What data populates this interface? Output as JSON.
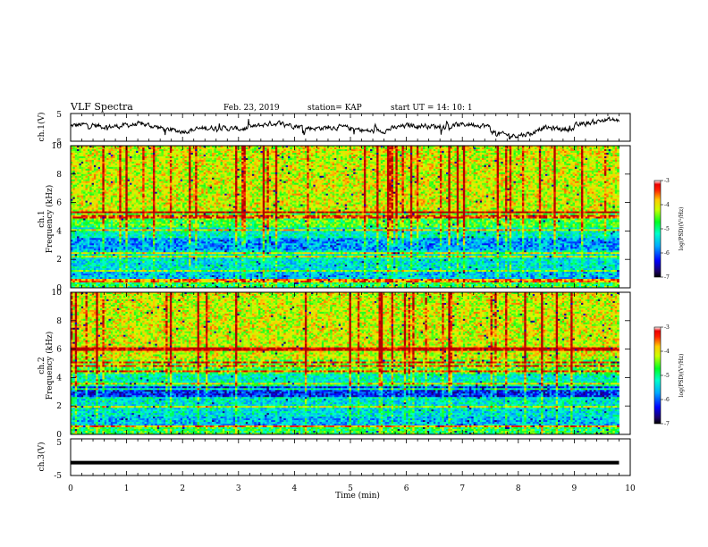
{
  "header": {
    "title": "VLF Spectra",
    "date": "Feb. 23, 2019",
    "station": "station= KAP",
    "start": "start  UT =   14: 10: 1"
  },
  "chart_data": [
    {
      "type": "line",
      "ylabel": "ch.1(V)",
      "ylim": [
        -5,
        5
      ],
      "yticks": [
        "5",
        "-5"
      ],
      "xlim": [
        0,
        10
      ],
      "note": "continuous fluctuating waveform, approx. -3.5 V to +3 V"
    },
    {
      "type": "heatmap",
      "ylabel": "ch.1\nFrequency (kHz)",
      "ylabel_lines": [
        "ch.1",
        "Frequency (kHz)"
      ],
      "ylim": [
        0,
        10
      ],
      "yticks": [
        "0",
        "2",
        "4",
        "6",
        "8",
        "10"
      ],
      "xlim": [
        0,
        9.8
      ],
      "colorbar": {
        "label": "log(PSD)(V²/Hz)",
        "range": [
          -7,
          -3
        ],
        "ticks": [
          "-3",
          "-4",
          "-5",
          "-6",
          "-7"
        ]
      }
    },
    {
      "type": "heatmap",
      "ylabel": "ch.2\nFrequency (kHz)",
      "ylabel_lines": [
        "ch.2",
        "Frequency (kHz)"
      ],
      "ylim": [
        0,
        10
      ],
      "yticks": [
        "0",
        "2",
        "4",
        "6",
        "8",
        "10"
      ],
      "xlim": [
        0,
        9.8
      ],
      "colorbar": {
        "label": "log(PSD)(V²/Hz)",
        "range": [
          -7,
          -3
        ],
        "ticks": [
          "-3",
          "-4",
          "-5",
          "-6",
          "-7"
        ]
      }
    },
    {
      "type": "line",
      "ylabel": "ch.3(V)",
      "ylim": [
        -5,
        5
      ],
      "yticks": [
        "5",
        "-5"
      ],
      "xlim": [
        0,
        10
      ],
      "note": "flat line at approximately -1.5 V",
      "level": -1.5
    }
  ],
  "xaxis": {
    "label": "Time (min)",
    "range": [
      0,
      10
    ],
    "ticks": [
      "0",
      "1",
      "2",
      "3",
      "4",
      "5",
      "6",
      "7",
      "8",
      "9",
      "10"
    ]
  }
}
